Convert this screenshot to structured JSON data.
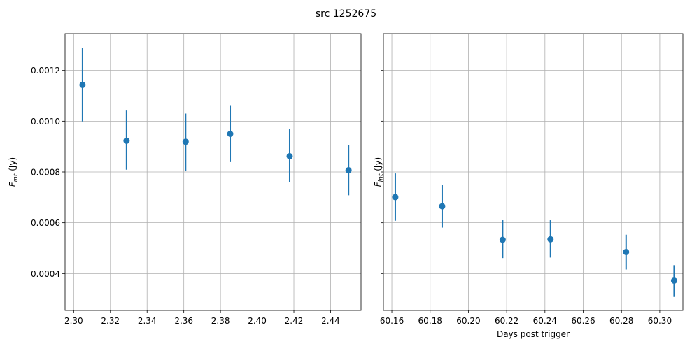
{
  "title": "src 1252675",
  "chart_data": [
    {
      "type": "scatter",
      "ylabel": "F_int (Jy)",
      "xlabel": "",
      "xlim": [
        2.2953,
        2.4566
      ],
      "ylim": [
        0.000255,
        0.001345
      ],
      "x_ticks": [
        2.3,
        2.32,
        2.34,
        2.36,
        2.38,
        2.4,
        2.42,
        2.44
      ],
      "x_tick_labels": [
        "2.30",
        "2.32",
        "2.34",
        "2.36",
        "2.38",
        "2.40",
        "2.42",
        "2.44"
      ],
      "y_ticks": [
        0.0004,
        0.0006,
        0.0008,
        0.001,
        0.0012
      ],
      "y_tick_labels": [
        "0.0004",
        "0.0006",
        "0.0008",
        "0.0010",
        "0.0012"
      ],
      "grid": true,
      "color": "#1f77b4",
      "points": [
        {
          "x": 2.3048,
          "y": 0.001143,
          "yerr_low": 0.000999,
          "yerr_high": 0.001289
        },
        {
          "x": 2.3288,
          "y": 0.000923,
          "yerr_low": 0.000809,
          "yerr_high": 0.001042
        },
        {
          "x": 2.361,
          "y": 0.000919,
          "yerr_low": 0.000805,
          "yerr_high": 0.00103
        },
        {
          "x": 2.3853,
          "y": 0.00095,
          "yerr_low": 0.000839,
          "yerr_high": 0.001063
        },
        {
          "x": 2.4177,
          "y": 0.000862,
          "yerr_low": 0.000759,
          "yerr_high": 0.00097
        },
        {
          "x": 2.4498,
          "y": 0.000807,
          "yerr_low": 0.000708,
          "yerr_high": 0.000905
        }
      ]
    },
    {
      "type": "scatter",
      "ylabel": "F_int (Jy)",
      "xlabel": "Days post trigger",
      "xlim": [
        60.1556,
        60.3121
      ],
      "ylim": [
        0.000255,
        0.001345
      ],
      "x_ticks": [
        60.16,
        60.18,
        60.2,
        60.22,
        60.24,
        60.26,
        60.28,
        60.3
      ],
      "x_tick_labels": [
        "60.16",
        "60.18",
        "60.20",
        "60.22",
        "60.24",
        "60.26",
        "60.28",
        "60.30"
      ],
      "y_ticks": [
        0.0004,
        0.0006,
        0.0008,
        0.001,
        0.0012
      ],
      "y_tick_labels": [],
      "grid": true,
      "color": "#1f77b4",
      "points": [
        {
          "x": 60.1618,
          "y": 0.000701,
          "yerr_low": 0.000608,
          "yerr_high": 0.000794
        },
        {
          "x": 60.1863,
          "y": 0.000665,
          "yerr_low": 0.000581,
          "yerr_high": 0.00075
        },
        {
          "x": 60.2179,
          "y": 0.000533,
          "yerr_low": 0.000461,
          "yerr_high": 0.00061
        },
        {
          "x": 60.2429,
          "y": 0.000535,
          "yerr_low": 0.000463,
          "yerr_high": 0.00061
        },
        {
          "x": 60.2824,
          "y": 0.000485,
          "yerr_low": 0.000416,
          "yerr_high": 0.000553
        },
        {
          "x": 60.3075,
          "y": 0.000372,
          "yerr_low": 0.000308,
          "yerr_high": 0.000433
        }
      ]
    }
  ]
}
